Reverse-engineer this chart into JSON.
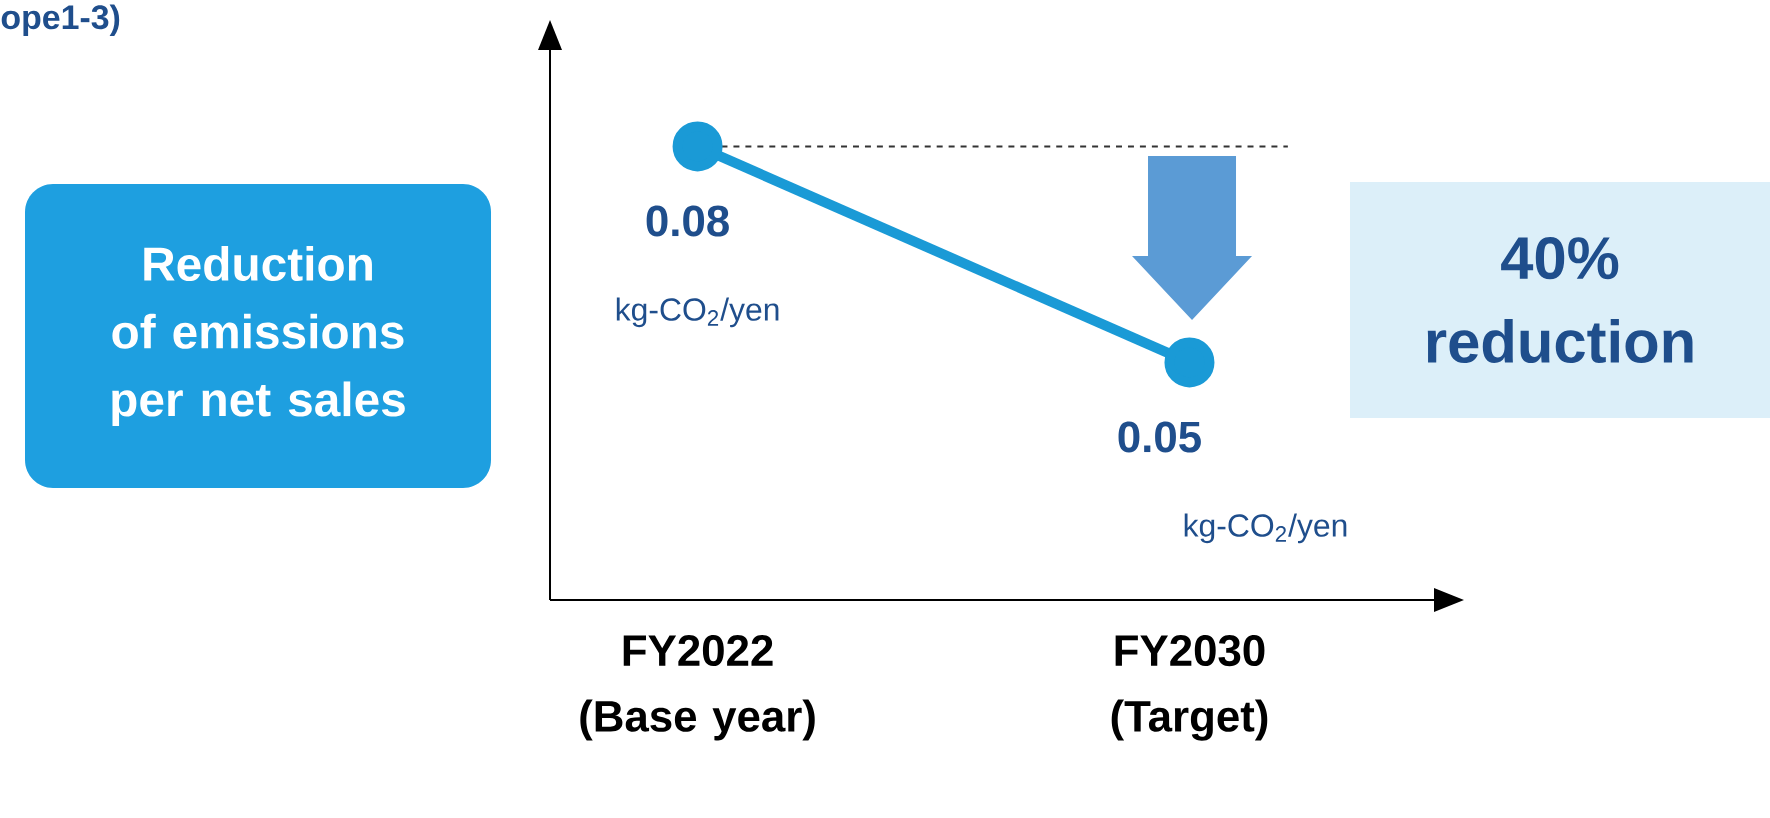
{
  "chart_data": {
    "type": "line",
    "title": "ope1-3)",
    "categories": [
      "FY2022 (Base year)",
      "FY2030 (Target)"
    ],
    "values": [
      0.08,
      0.05
    ],
    "color": "#1a9ad6",
    "marker": "circle",
    "data_labels": true,
    "ylim": [
      0.017,
      0.097
    ],
    "tick_labels": "x",
    "ref_lines": [
      {
        "axis": "y",
        "value": 0.08,
        "line_style": "dashed",
        "color": "#333333"
      }
    ],
    "annotations": [
      "Reduction of emissions per net sales",
      "40% reduction",
      "kg-CO$_{2}$/yen",
      "kg-CO$_{2}$/yen"
    ]
  }
}
